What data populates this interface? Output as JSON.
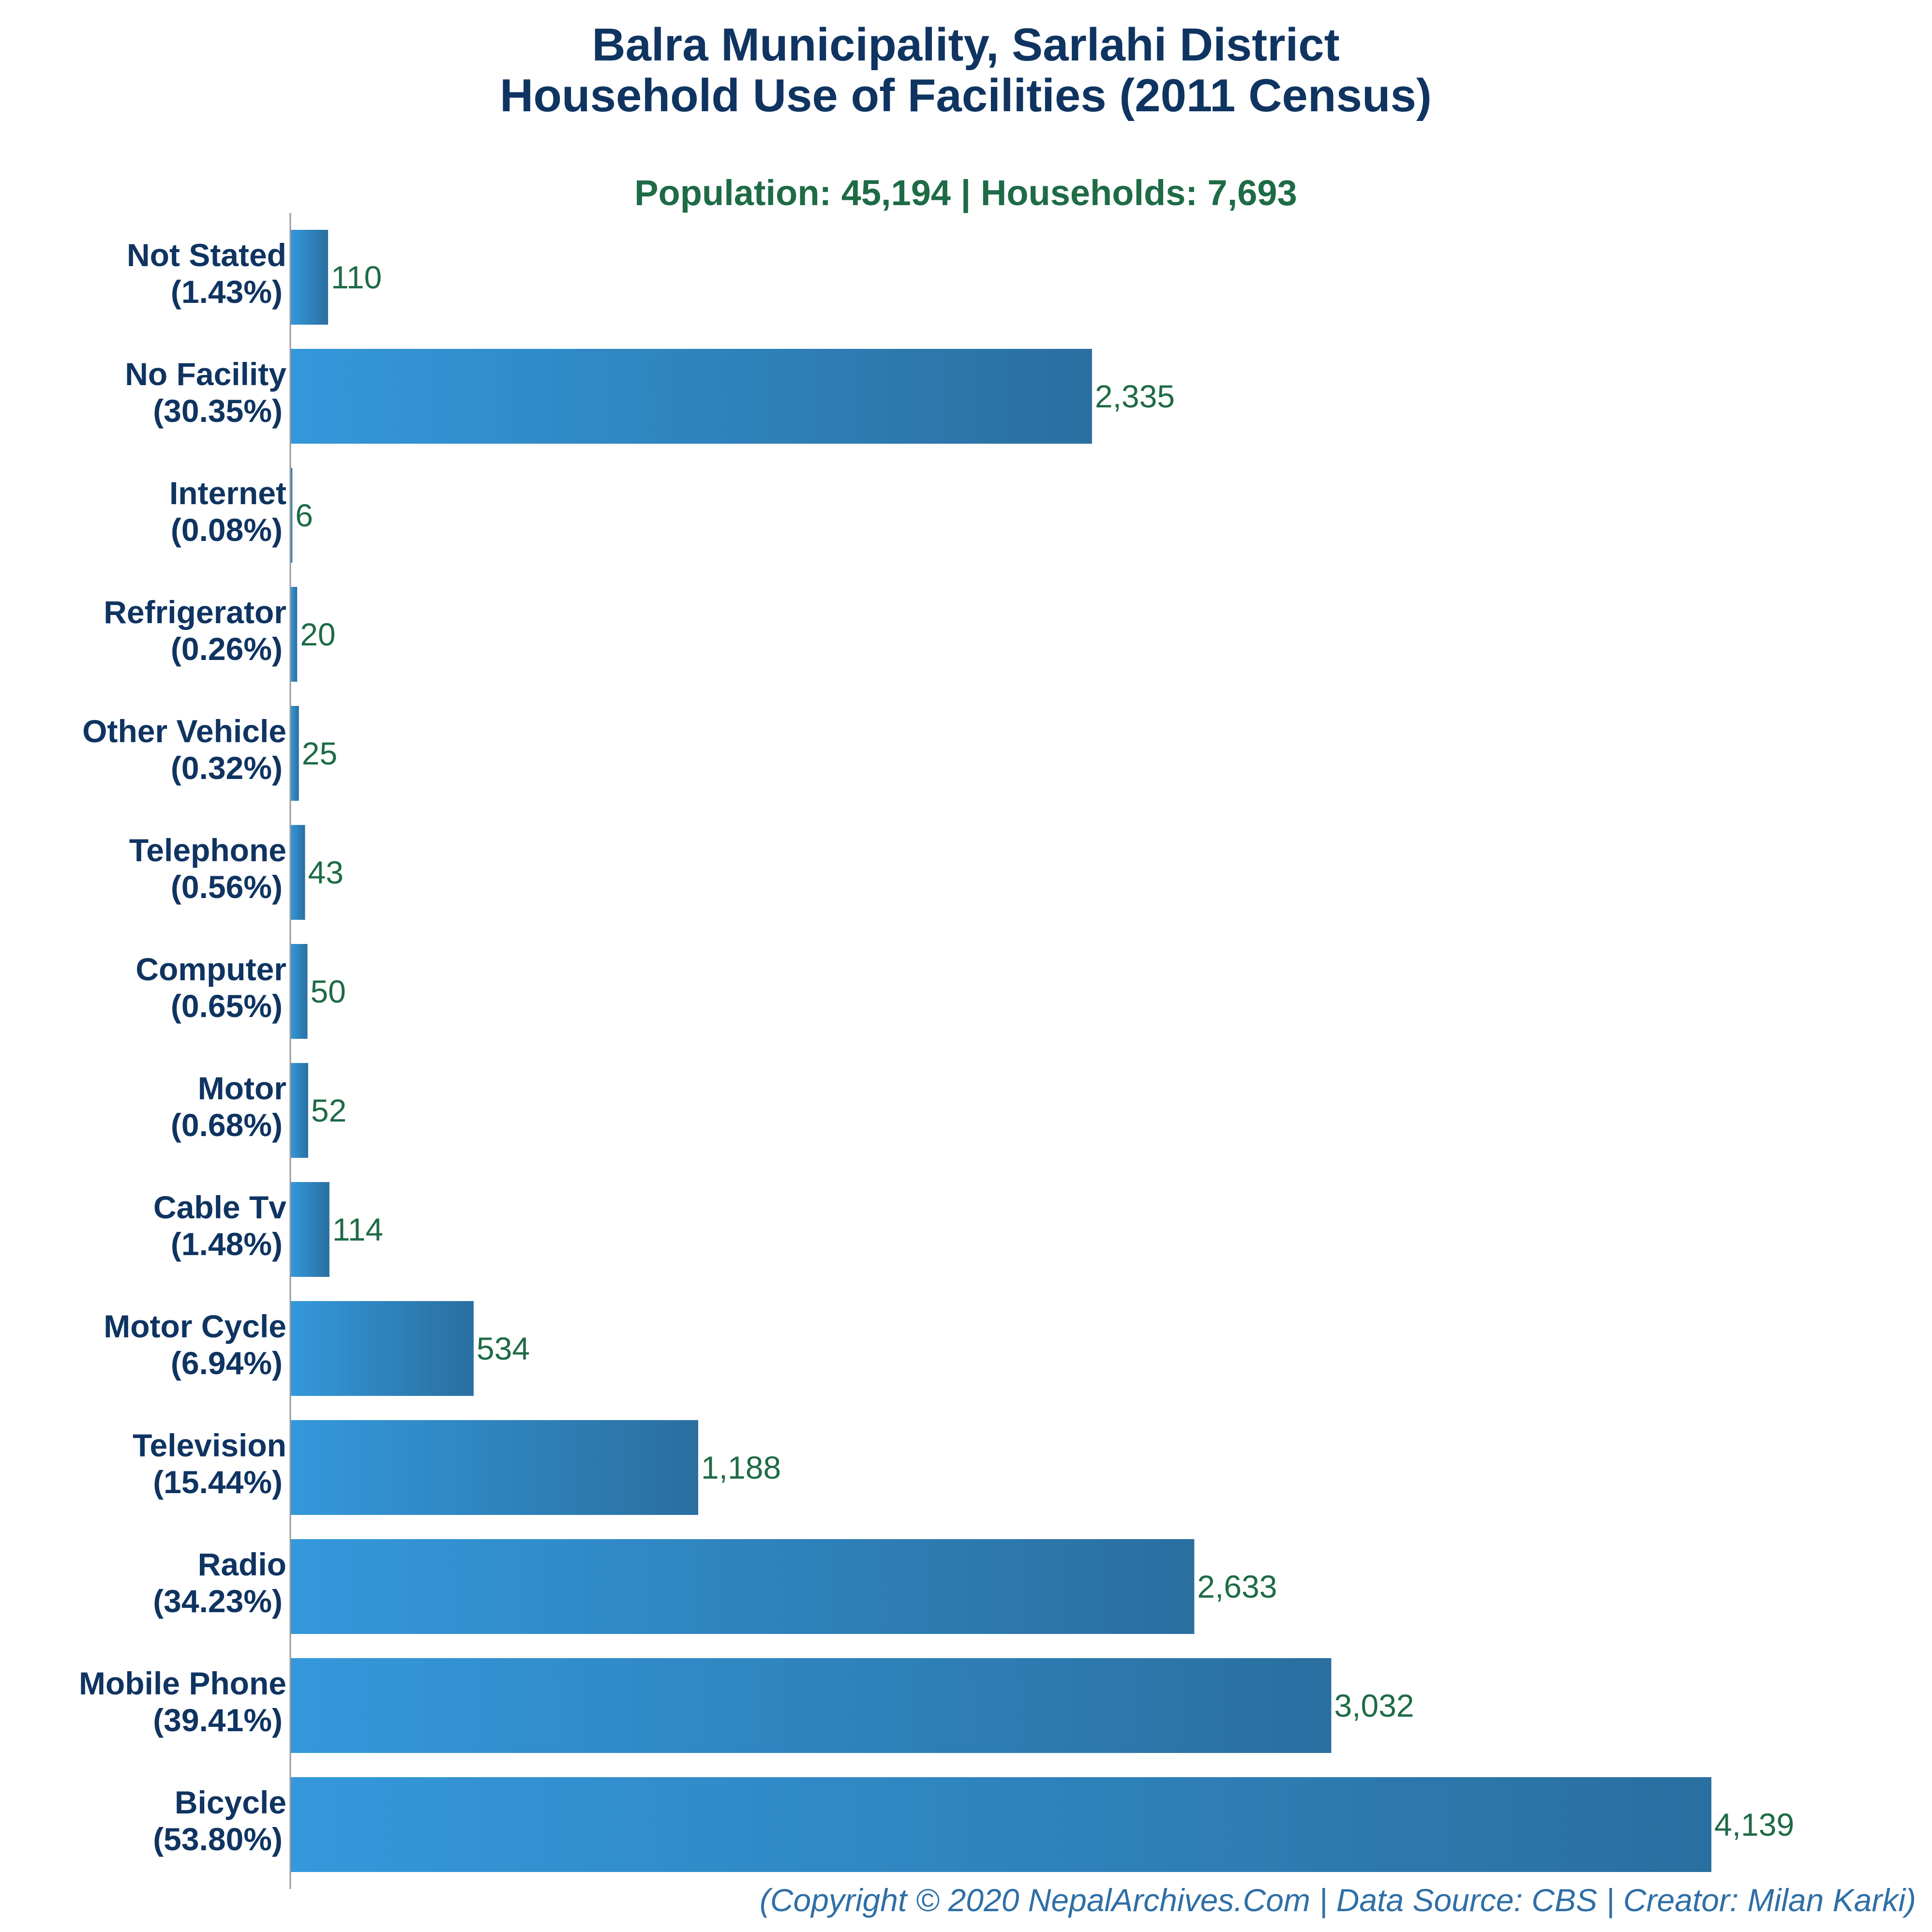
{
  "chart_data": {
    "type": "bar",
    "orientation": "horizontal",
    "title_lines": [
      "Balra Municipality, Sarlahi District",
      "Household Use of Facilities (2011 Census)"
    ],
    "subtitle": "Population: 45,194 | Households: 7,693",
    "footer": "(Copyright © 2020 NepalArchives.Com | Data Source: CBS | Creator: Milan Karki)",
    "categories": [
      "Not Stated",
      "No Facility",
      "Internet",
      "Refrigerator",
      "Other Vehicle",
      "Telephone",
      "Computer",
      "Motor",
      "Cable Tv",
      "Motor Cycle",
      "Television",
      "Radio",
      "Mobile Phone",
      "Bicycle"
    ],
    "percent_labels": [
      "(1.43%)",
      "(30.35%)",
      "(0.08%)",
      "(0.26%)",
      "(0.32%)",
      "(0.56%)",
      "(0.65%)",
      "(0.68%)",
      "(1.48%)",
      "(6.94%)",
      "(15.44%)",
      "(34.23%)",
      "(39.41%)",
      "(53.80%)"
    ],
    "values": [
      110,
      2335,
      6,
      20,
      25,
      43,
      50,
      52,
      114,
      534,
      1188,
      2633,
      3032,
      4139
    ],
    "value_labels": [
      "110",
      "2,335",
      "6",
      "20",
      "25",
      "43",
      "50",
      "52",
      "114",
      "534",
      "1,188",
      "2,633",
      "3,032",
      "4,139"
    ],
    "xlim": [
      0,
      4139
    ],
    "grid": false,
    "legend": "none",
    "colors": {
      "bar_light": "#3498db",
      "bar_dark": "#2a6fa0",
      "title": "#0f3461",
      "subtitle": "#1e6b46",
      "value_label": "#1e6b46",
      "footer": "#2f6fa6",
      "axis": "#999999"
    }
  }
}
